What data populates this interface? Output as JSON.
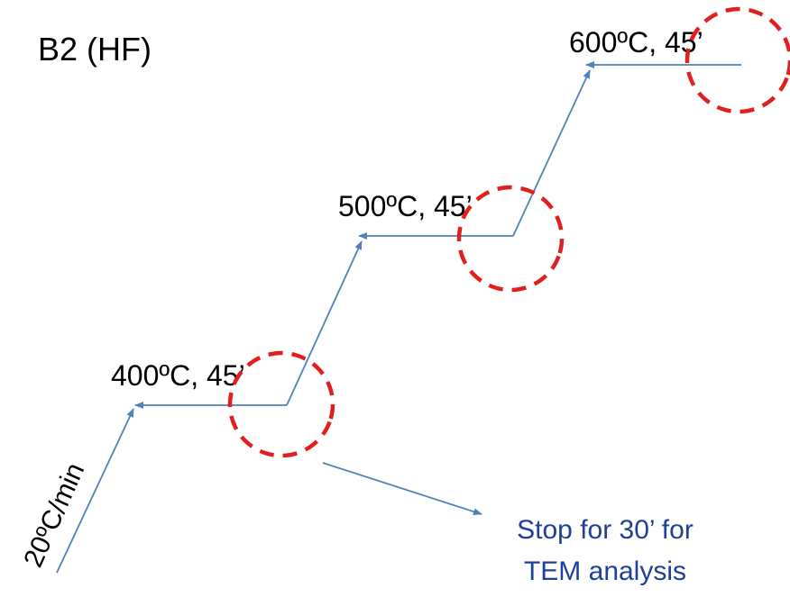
{
  "title": "B2 (HF)",
  "ramp_label": "20ºC/min",
  "steps": [
    {
      "label": "400ºC, 45’"
    },
    {
      "label": "500ºC, 45’"
    },
    {
      "label": "600ºC, 45’"
    }
  ],
  "note": {
    "line1": "Stop for 30’ for",
    "line2": "TEM analysis"
  },
  "colors": {
    "path": "#4f81bd",
    "marker": "#e02020",
    "note_text": "#1f3f99",
    "text": "#000000"
  }
}
